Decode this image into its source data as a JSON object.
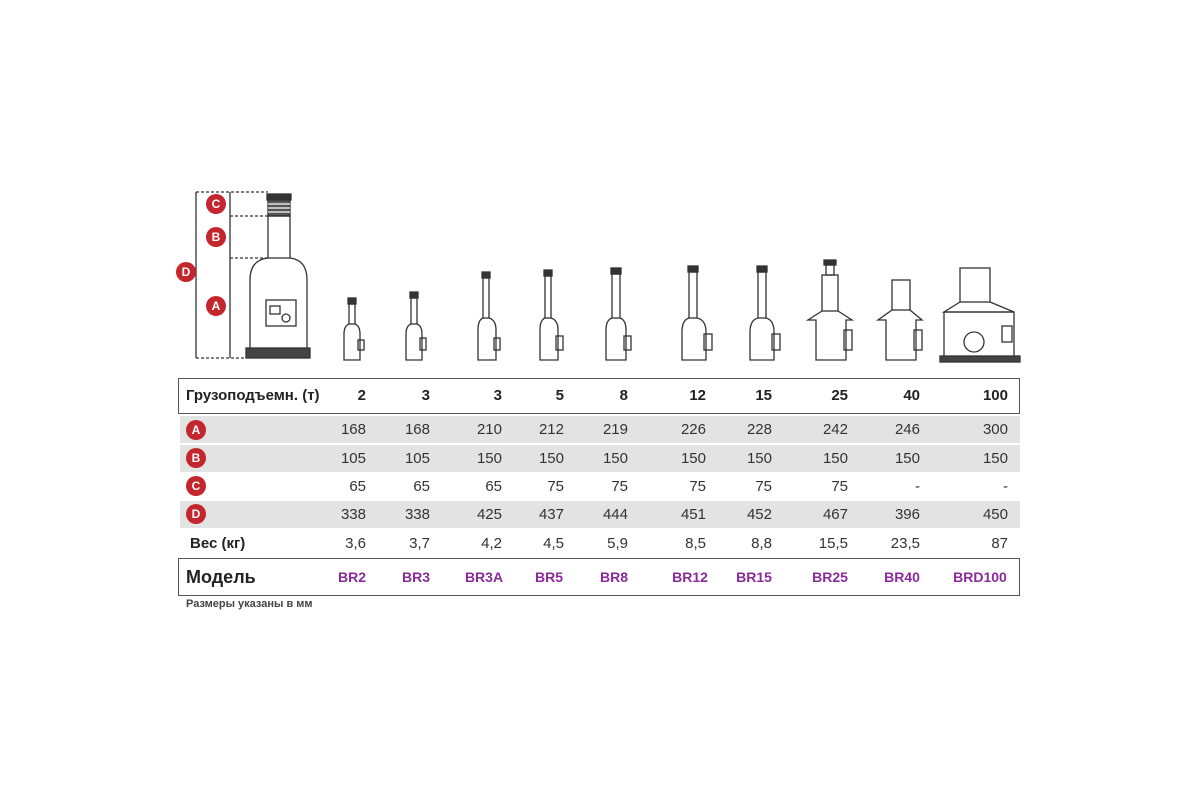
{
  "diagram": {
    "labels": [
      "C",
      "B",
      "D",
      "A"
    ]
  },
  "table": {
    "capacity_label": "Грузоподъемн. (т)",
    "capacities": [
      "2",
      "3",
      "3",
      "5",
      "8",
      "12",
      "15",
      "25",
      "40",
      "100"
    ],
    "rows": [
      {
        "badge": "A",
        "values": [
          "168",
          "168",
          "210",
          "212",
          "219",
          "226",
          "228",
          "242",
          "246",
          "300"
        ]
      },
      {
        "badge": "B",
        "values": [
          "105",
          "105",
          "150",
          "150",
          "150",
          "150",
          "150",
          "150",
          "150",
          "150"
        ]
      },
      {
        "badge": "C",
        "values": [
          "65",
          "65",
          "65",
          "75",
          "75",
          "75",
          "75",
          "75",
          "-",
          "-"
        ]
      },
      {
        "badge": "D",
        "values": [
          "338",
          "338",
          "425",
          "437",
          "444",
          "451",
          "452",
          "467",
          "396",
          "450"
        ]
      }
    ],
    "weight_label": "Вес (кг)",
    "weights": [
      "3,6",
      "3,7",
      "4,2",
      "4,5",
      "5,9",
      "8,5",
      "8,8",
      "15,5",
      "23,5",
      "87"
    ],
    "model_label": "Модель",
    "models": [
      "BR2",
      "BR3",
      "BR3A",
      "BR5",
      "BR8",
      "BR12",
      "BR15",
      "BR25",
      "BR40",
      "BRD100"
    ],
    "note": "Размеры указаны в мм"
  },
  "colors": {
    "badge": "#c4262e",
    "model_text": "#8a2a9a",
    "shade": "#e3e3e3"
  }
}
